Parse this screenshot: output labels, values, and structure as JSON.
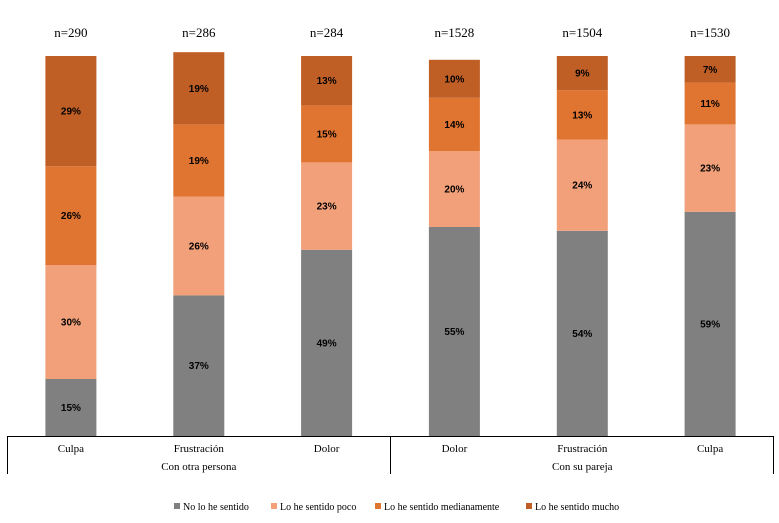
{
  "chart_data": {
    "type": "bar",
    "stacked": true,
    "percent": true,
    "categories": [
      "Culpa",
      "Frustración",
      "Dolor",
      "Dolor",
      "Frustración",
      "Culpa"
    ],
    "groups": [
      {
        "label": "Con otra persona",
        "categories": [
          0,
          1,
          2
        ]
      },
      {
        "label": "Con su pareja",
        "categories": [
          3,
          4,
          5
        ]
      }
    ],
    "n_labels": [
      "n=290",
      "n=286",
      "n=284",
      "n=1528",
      "n=1504",
      "n=1530"
    ],
    "series": [
      {
        "name": "No lo he sentido",
        "values": [
          15,
          37,
          49,
          55,
          54,
          59
        ],
        "color": "#808080"
      },
      {
        "name": "Lo he sentido poco",
        "values": [
          30,
          26,
          23,
          20,
          24,
          23
        ],
        "color": "#f1a07a"
      },
      {
        "name": "Lo he sentido medianamente",
        "values": [
          26,
          19,
          15,
          14,
          13,
          11
        ],
        "color": "#e07431"
      },
      {
        "name": "Lo he sentido mucho",
        "values": [
          29,
          19,
          13,
          10,
          9,
          7
        ],
        "color": "#bf5f26"
      }
    ],
    "ylim": [
      0,
      100
    ],
    "grid": false,
    "legend_position": "bottom",
    "title": "",
    "xlabel": "",
    "ylabel": ""
  }
}
